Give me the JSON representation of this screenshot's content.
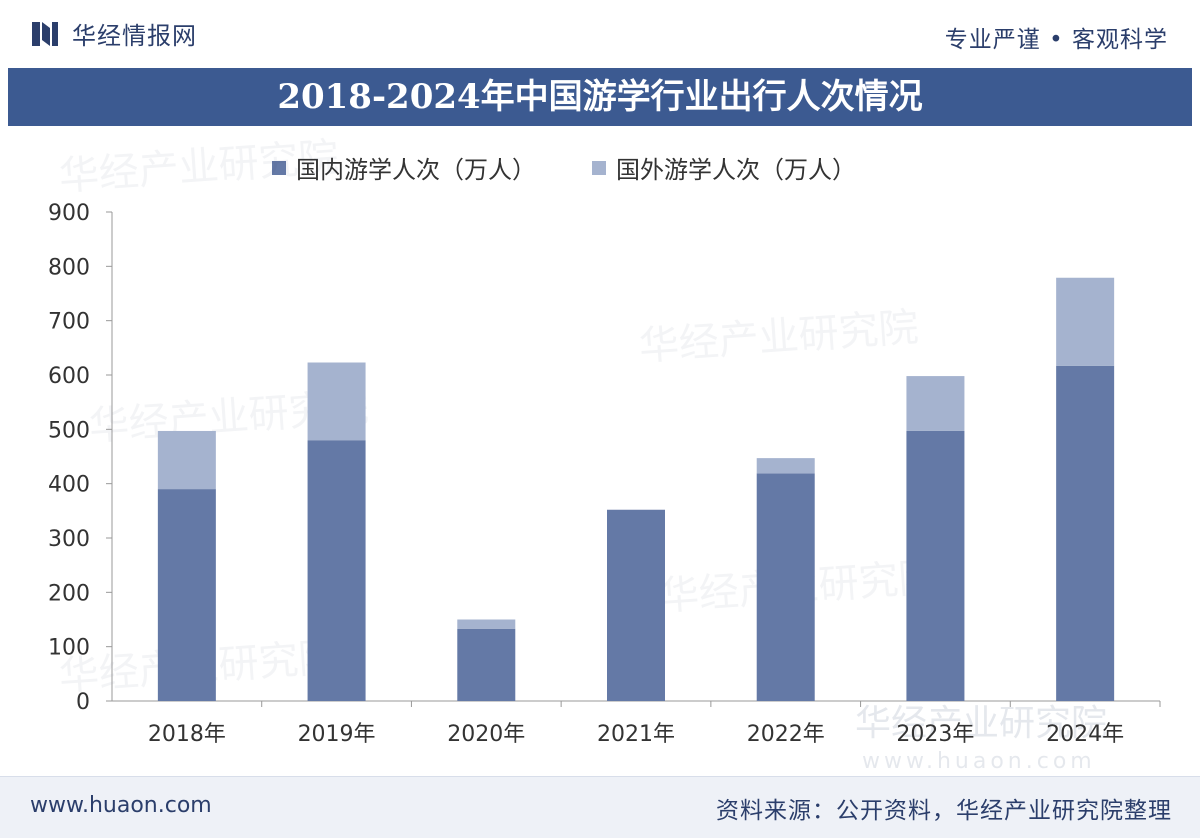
{
  "header": {
    "brand": "华经情报网",
    "slogan": "专业严谨 • 客观科学"
  },
  "title": "2018-2024年中国游学行业出行人次情况",
  "chart_data": {
    "type": "bar",
    "stacked": true,
    "categories": [
      "2018年",
      "2019年",
      "2020年",
      "2021年",
      "2022年",
      "2023年",
      "2024年"
    ],
    "series": [
      {
        "name": "国内游学人次（万人）",
        "color": "#6479a6",
        "values": [
          390,
          480,
          133,
          352,
          419,
          497,
          617
        ]
      },
      {
        "name": "国外游学人次（万人）",
        "color": "#a5b3cf",
        "values": [
          107,
          143,
          17,
          0,
          28,
          101,
          162
        ]
      }
    ],
    "ylim": [
      0,
      900
    ],
    "yticks": [
      0,
      100,
      200,
      300,
      400,
      500,
      600,
      700,
      800,
      900
    ],
    "legend_position": "top",
    "grid": false
  },
  "footer": {
    "site": "www.huaon.com",
    "source": "资料来源：公开资料，华经产业研究院整理"
  },
  "watermark": {
    "text": "华经产业研究院",
    "url": "www.huaon.com"
  }
}
